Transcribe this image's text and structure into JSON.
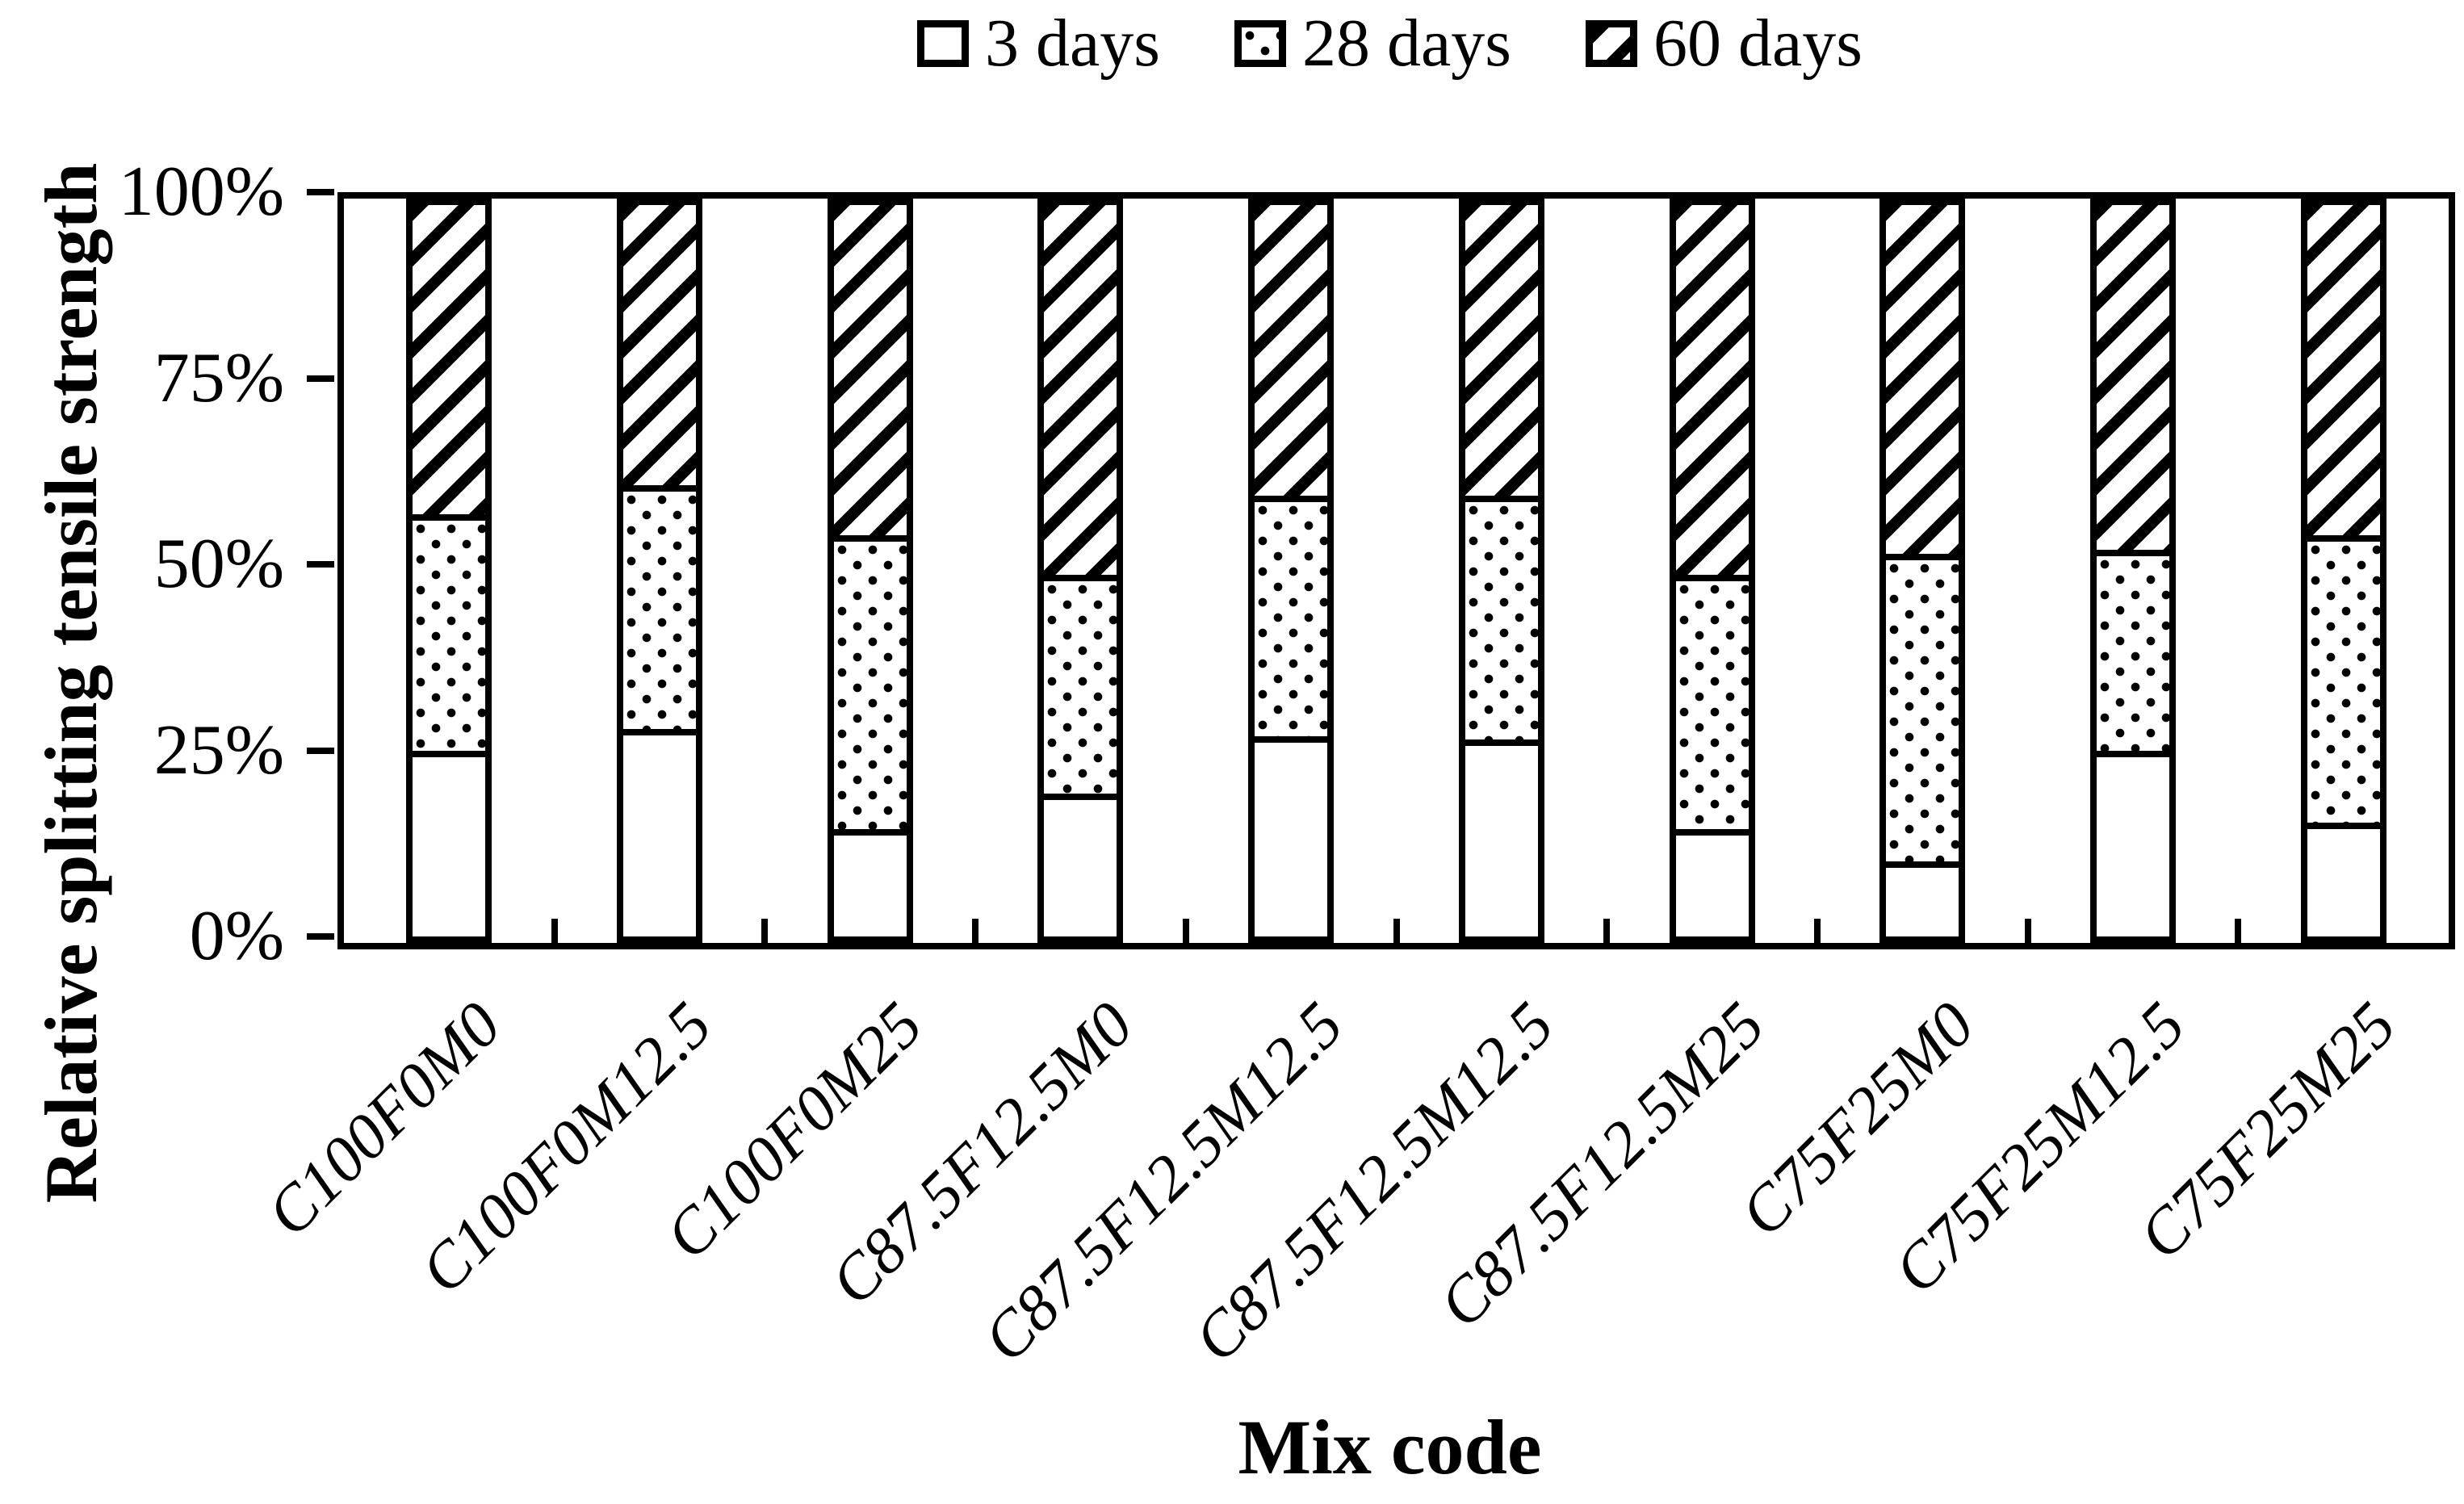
{
  "chart_data": {
    "type": "bar",
    "subtype": "100%-stacked-bar",
    "title": "",
    "xlabel": "Mix code",
    "ylabel": "Relative splitting tensile strength",
    "categories": [
      "C100F0M0",
      "C100F0M12.5",
      "C100F0M25",
      "C87.5F12.5M0",
      "C87.5F12.5M12.5",
      "C87.5F12.5M12.5",
      "C87.5F12.5M25",
      "C75F25M0",
      "C75F25M12.5",
      "C75F25M25"
    ],
    "series": [
      {
        "name": "3 days",
        "pattern": "solid-white",
        "values": [
          25,
          28,
          14,
          19,
          27,
          26.5,
          14,
          9.5,
          25,
          15
        ]
      },
      {
        "name": "28 days",
        "pattern": "dotted",
        "values": [
          32,
          33,
          40,
          29.5,
          32.5,
          33,
          34.5,
          42,
          27,
          39
        ]
      },
      {
        "name": "60 days",
        "pattern": "diagonal-hatch",
        "values": [
          43,
          39,
          46,
          51.5,
          40.5,
          40.5,
          51.5,
          48.5,
          48,
          46
        ]
      }
    ],
    "y_ticks": [
      {
        "label": "0%",
        "value": 0
      },
      {
        "label": "25%",
        "value": 25
      },
      {
        "label": "50%",
        "value": 50
      },
      {
        "label": "75%",
        "value": 75
      },
      {
        "label": "100%",
        "value": 100
      }
    ],
    "ylim": [
      0,
      100
    ],
    "legend_position": "top",
    "grid": false,
    "colors": {
      "foreground": "#000000",
      "background": "#ffffff"
    }
  }
}
